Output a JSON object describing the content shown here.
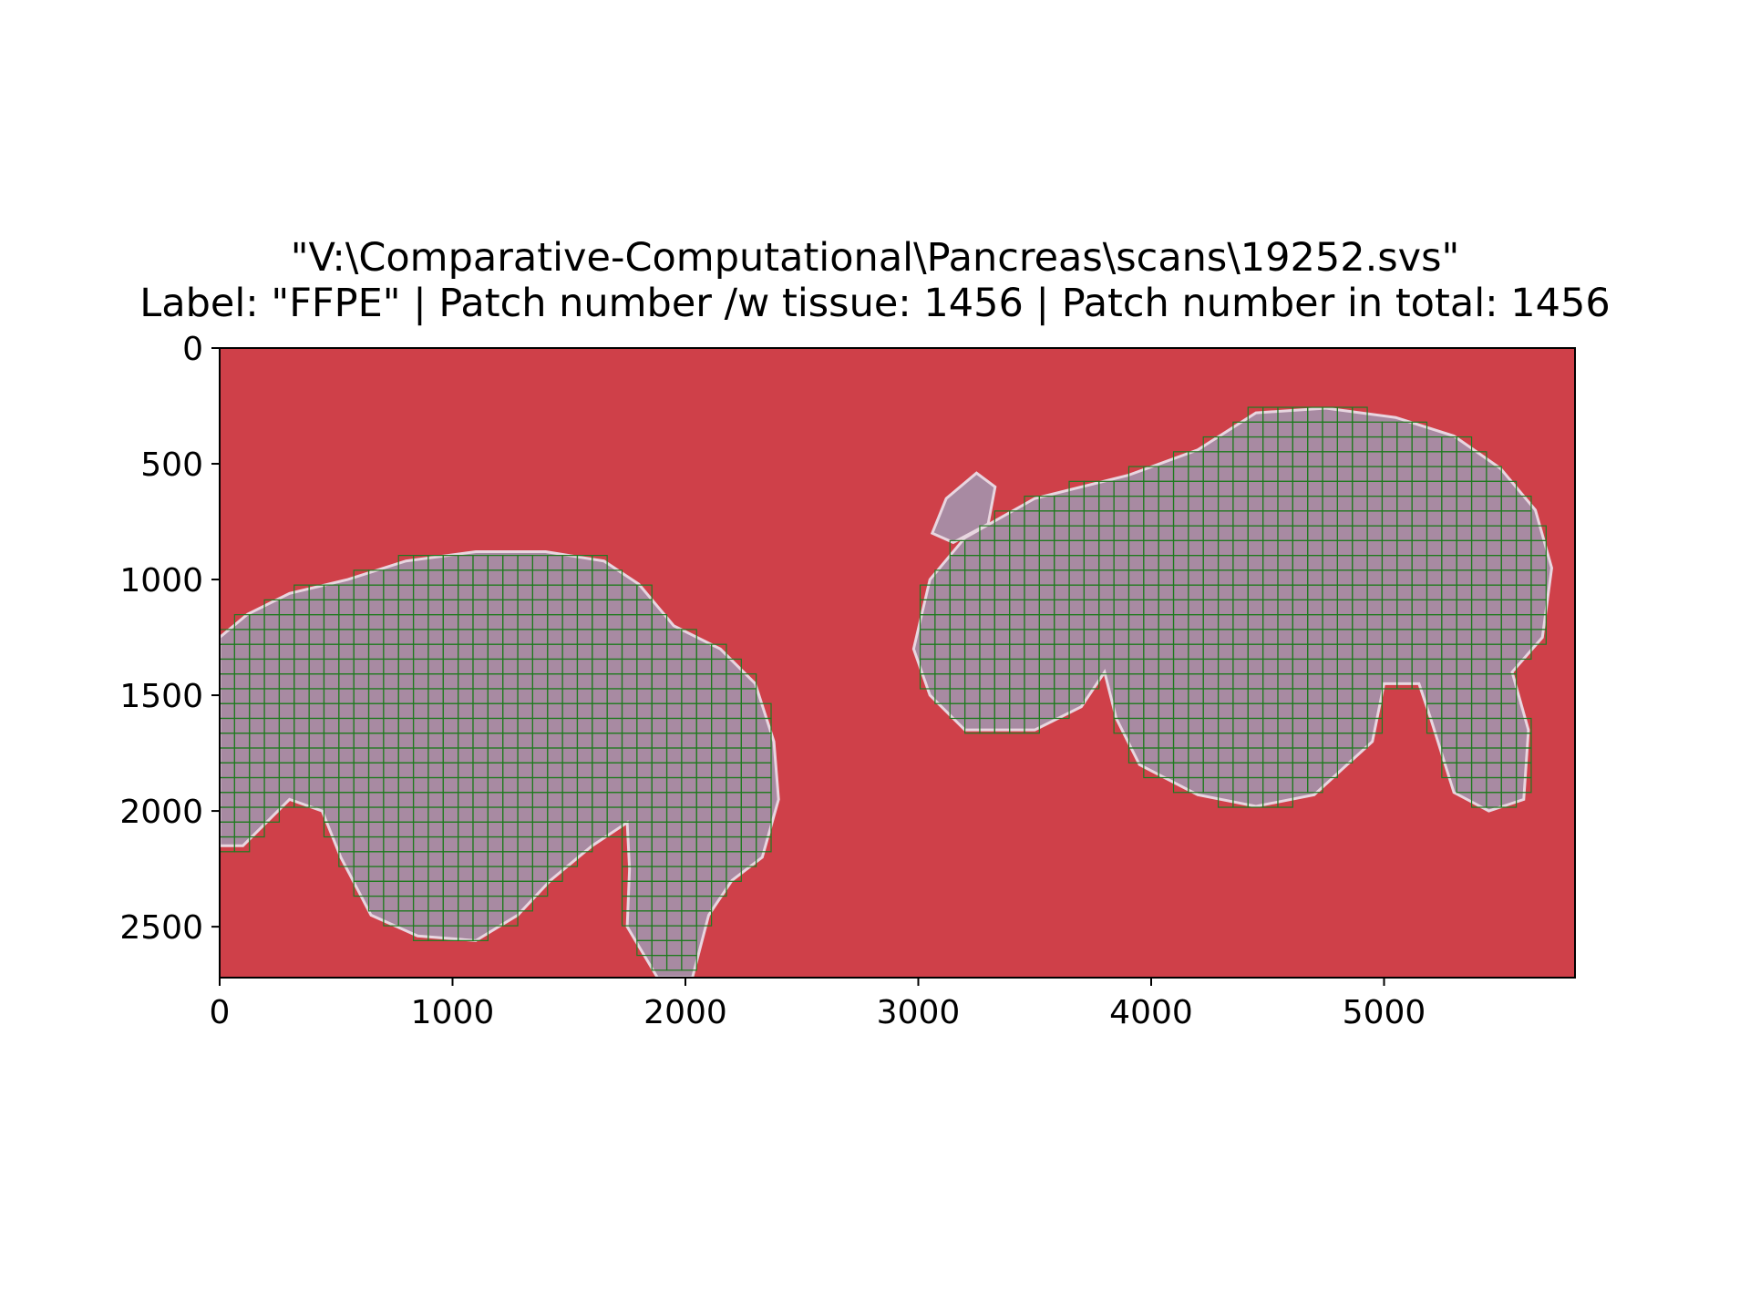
{
  "chart_data": {
    "type": "heatmap",
    "title": "\"V:\\Comparative-Computational\\Pancreas\\scans\\19252.svs\"",
    "subtitle": "Label: \"FFPE\" | Patch number /w tissue: 1456 | Patch number in total: 1456",
    "xlim": [
      0,
      5820
    ],
    "ylim": [
      2720,
      0
    ],
    "x_ticks": [
      "0",
      "1000",
      "2000",
      "3000",
      "4000",
      "5000"
    ],
    "y_ticks": [
      "0",
      "500",
      "1000",
      "1500",
      "2000",
      "2500"
    ],
    "x_tick_values": [
      0,
      1000,
      2000,
      3000,
      4000,
      5000
    ],
    "y_tick_values": [
      0,
      500,
      1000,
      1500,
      2000,
      2500
    ],
    "patch_size": 64,
    "patches_with_tissue": 1456,
    "patches_total": 1456,
    "colors": {
      "background_mask": "#cf4049",
      "tissue": "#a88aa2",
      "patch_grid": "#1f7a1f"
    }
  }
}
